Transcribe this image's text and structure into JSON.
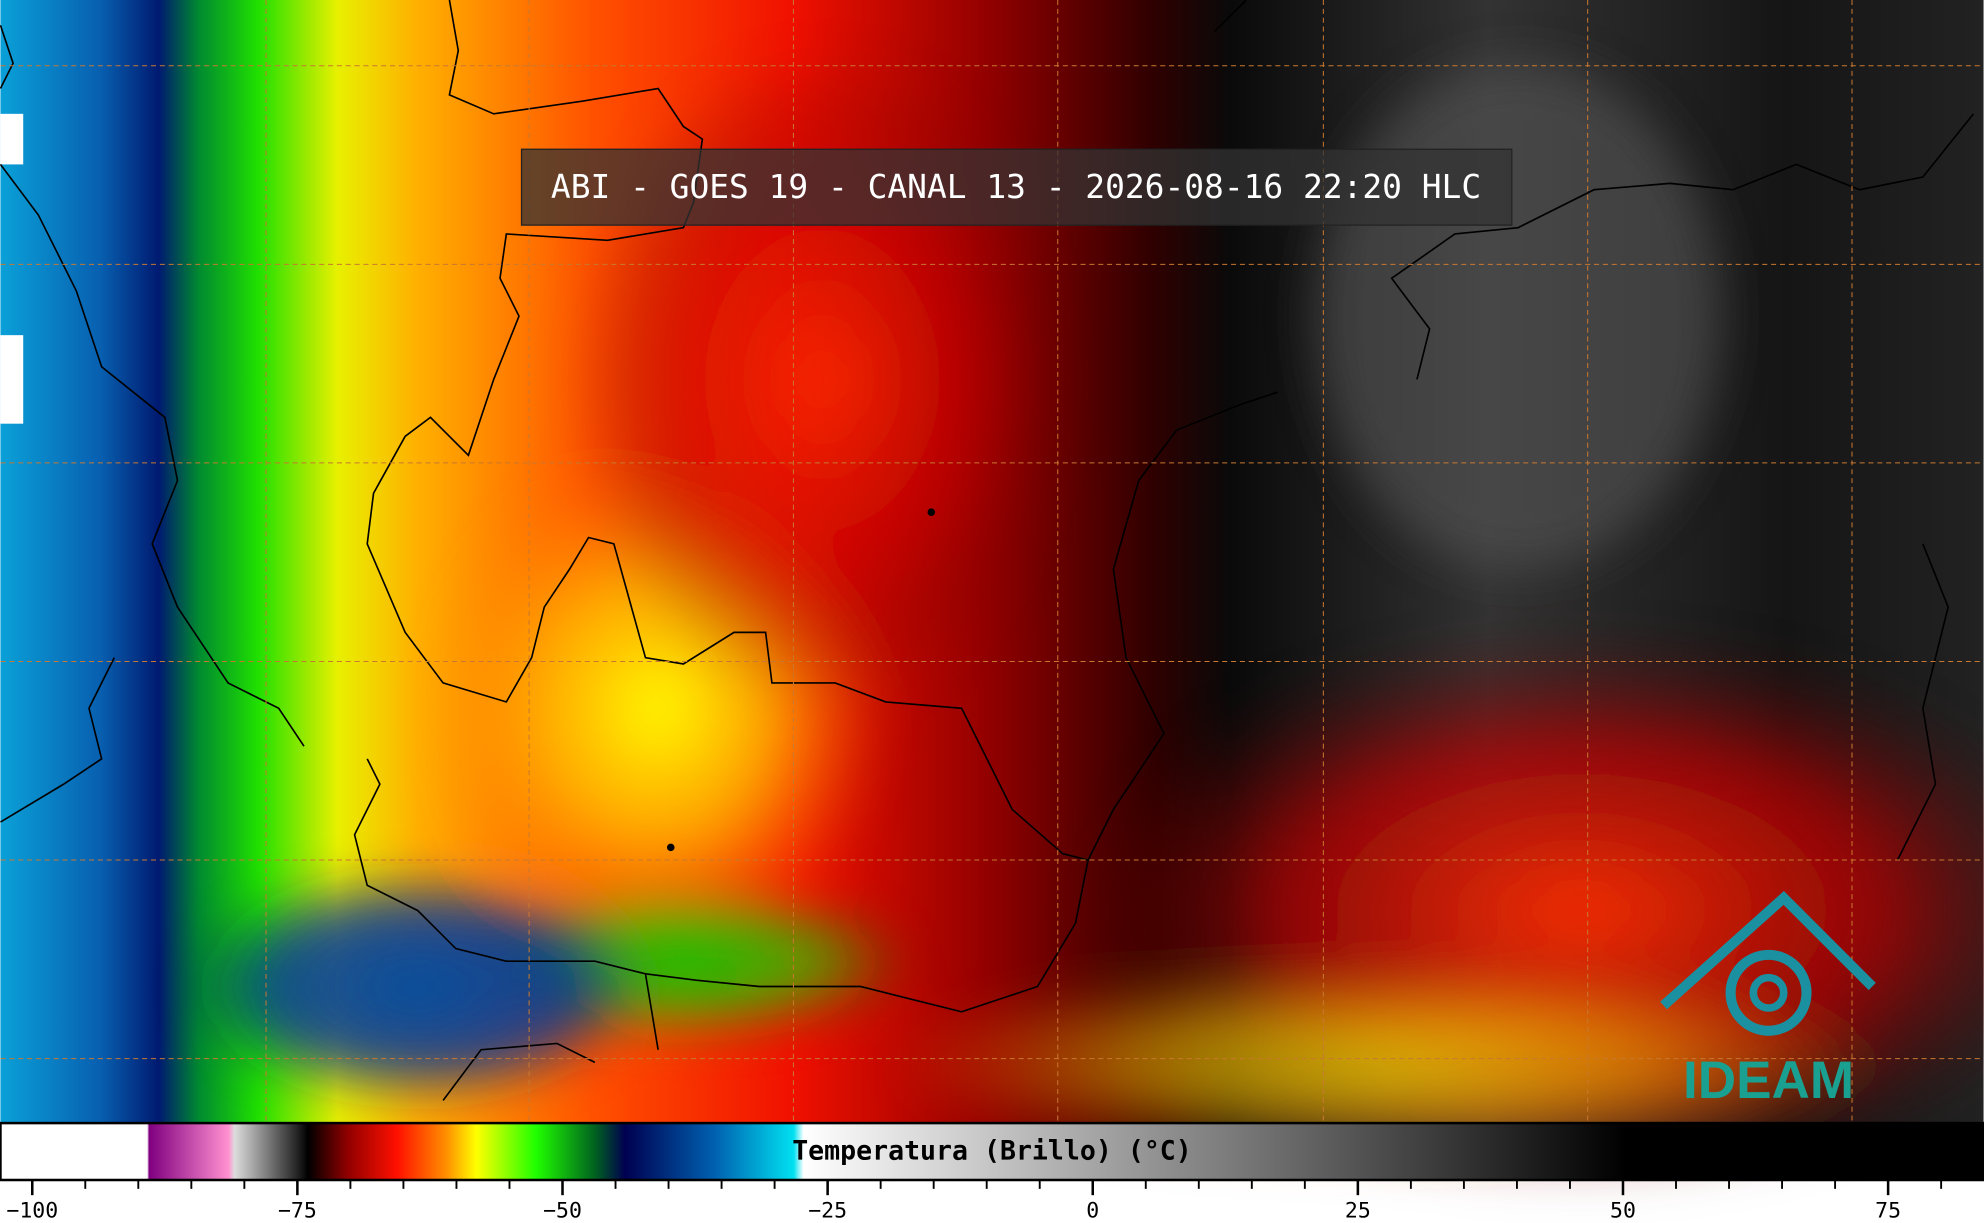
{
  "title": "ABI - GOES 19 - CANAL 13 - 2026-08-16 22:20 HLC",
  "logo": "IDEAM",
  "colorbar": {
    "label": "Temperatura (Brillo) (°C)",
    "lim": [
      -103,
      84
    ],
    "ticks": [
      {
        "value": -100,
        "label": "−100"
      },
      {
        "value": -75,
        "label": "−75"
      },
      {
        "value": -50,
        "label": "−50"
      },
      {
        "value": -25,
        "label": "−25"
      },
      0,
      25,
      50,
      75
    ]
  }
}
